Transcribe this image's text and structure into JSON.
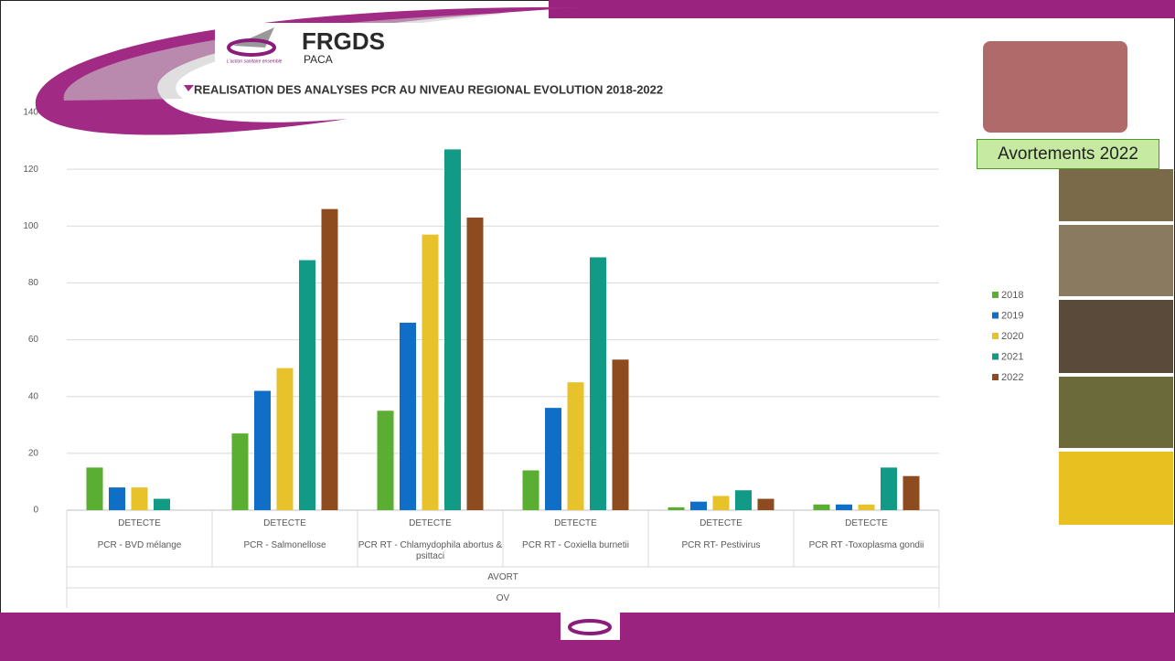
{
  "header": {
    "logo_name": "FRGDS",
    "logo_region": "PACA",
    "logo_tagline": "L'action sanitaire ensemble"
  },
  "sidebar": {
    "label": "Avortements 2022"
  },
  "chart_data": {
    "type": "bar",
    "title": "REALISATION DES ANALYSES PCR AU NIVEAU REGIONAL EVOLUTION 2018-2022",
    "categories": [
      "PCR - BVD mélange",
      "PCR - Salmonellose",
      "PCR RT - Chlamydophila abortus & psittaci",
      "PCR RT - Coxiella burnetii",
      "PCR RT- Pestivirus",
      "PCR RT -Toxoplasma gondii"
    ],
    "category_sublabels": [
      "DETECTE",
      "DETECTE",
      "DETECTE",
      "DETECTE",
      "DETECTE",
      "DETECTE"
    ],
    "group_labels": [
      "AVORT",
      "OV"
    ],
    "series": [
      {
        "name": "2018",
        "color": "#5aae32",
        "values": [
          15,
          27,
          35,
          14,
          1,
          2
        ]
      },
      {
        "name": "2019",
        "color": "#0f6fc6",
        "values": [
          8,
          42,
          66,
          36,
          3,
          2
        ]
      },
      {
        "name": "2020",
        "color": "#e8c22b",
        "values": [
          8,
          50,
          97,
          45,
          5,
          2
        ]
      },
      {
        "name": "2021",
        "color": "#119a85",
        "values": [
          4,
          88,
          127,
          89,
          7,
          15
        ]
      },
      {
        "name": "2022",
        "color": "#8e4b1f",
        "values": [
          null,
          106,
          103,
          53,
          4,
          12
        ]
      }
    ],
    "ylim": [
      0,
      140
    ],
    "yticks": [
      0,
      20,
      40,
      60,
      80,
      100,
      120,
      140
    ],
    "grid": true,
    "legend": "right"
  }
}
